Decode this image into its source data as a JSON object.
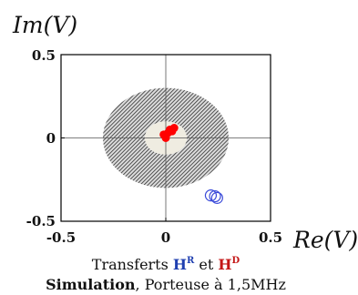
{
  "chart_data": {
    "type": "scatter",
    "ylabel": "Im(V)",
    "xlabel": "Re(V)",
    "xlim": [
      -0.5,
      0.5
    ],
    "ylim": [
      -0.5,
      0.5
    ],
    "xticks": [
      "-0.5",
      "0",
      "0.5"
    ],
    "yticks": [
      "0.5",
      "0",
      "-0.5"
    ],
    "grid": false,
    "crosshair_at_origin": true,
    "regions": [
      {
        "shape": "annulus",
        "center": [
          0,
          0
        ],
        "inner_radius": 0.1,
        "outer_radius": 0.3,
        "fill": "hatched",
        "color": "#333333"
      },
      {
        "shape": "disk",
        "center": [
          0,
          0
        ],
        "radius": 0.1,
        "color": "#efece1"
      }
    ],
    "series": [
      {
        "color": "#ff0000",
        "marker": "filled-circle",
        "points": [
          [
            0.0,
            0.0
          ],
          [
            0.02,
            0.05
          ],
          [
            0.04,
            0.06
          ],
          [
            0.01,
            0.03
          ],
          [
            0.03,
            0.04
          ],
          [
            -0.01,
            0.02
          ]
        ]
      },
      {
        "color": "#3a4ad9",
        "marker": "open-circle",
        "points": [
          [
            0.215,
            -0.345
          ],
          [
            0.245,
            -0.36
          ],
          [
            0.235,
            -0.35
          ]
        ]
      }
    ],
    "caption": {
      "line1": {
        "prefix": "Transferts ",
        "h1": "H",
        "h1_sup": "R",
        "h1_color": "#1f3fb0",
        "mid": " et ",
        "h2": "H",
        "h2_sup": "D",
        "h2_color": "#c41616"
      },
      "line2": {
        "bold": "Simulation",
        "rest": ", Porteuse à 1,5MHz"
      }
    }
  }
}
